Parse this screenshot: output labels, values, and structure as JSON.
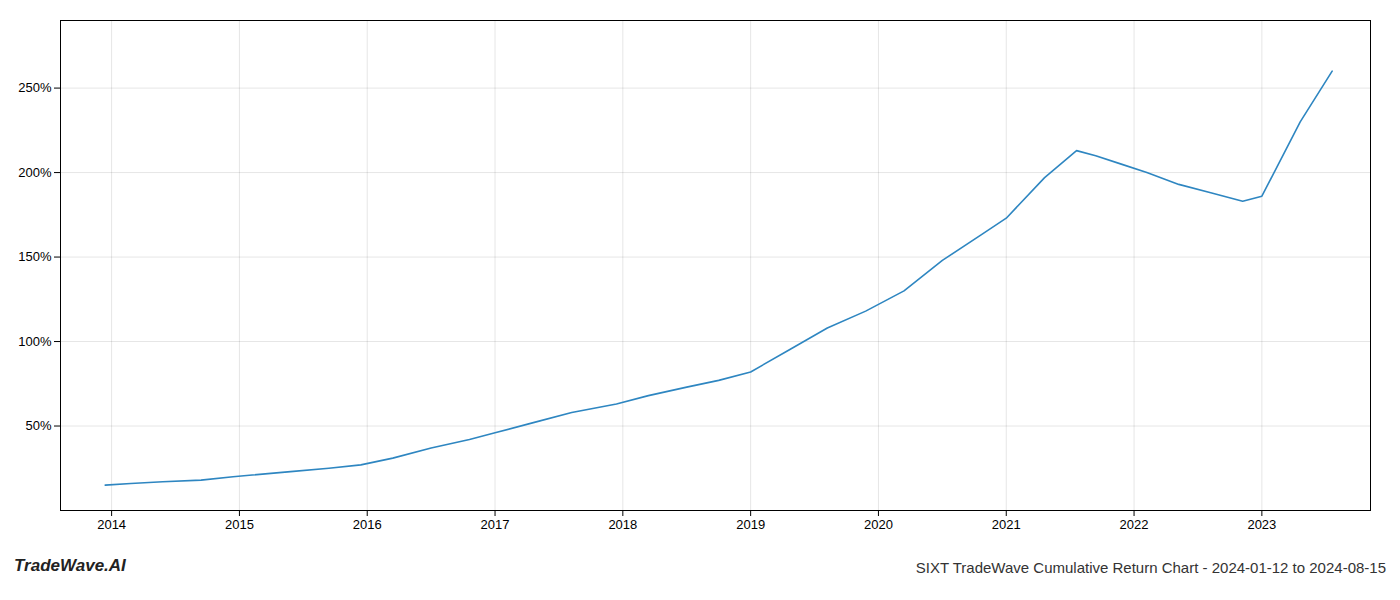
{
  "chart_data": {
    "type": "line",
    "title": "SIXT TradeWave Cumulative Return Chart - 2024-01-12 to 2024-08-15",
    "annotations": [
      "TradeWave.AI"
    ],
    "x": [
      2013.95,
      2014.15,
      2014.4,
      2014.7,
      2014.95,
      2015.1,
      2015.4,
      2015.7,
      2015.95,
      2016.2,
      2016.5,
      2016.8,
      2017.0,
      2017.3,
      2017.6,
      2017.95,
      2018.2,
      2018.5,
      2018.75,
      2019.0,
      2019.3,
      2019.6,
      2019.9,
      2020.2,
      2020.5,
      2020.8,
      2021.0,
      2021.3,
      2021.55,
      2021.7,
      2021.9,
      2022.1,
      2022.35,
      2022.6,
      2022.85,
      2023.0,
      2023.3,
      2023.55
    ],
    "values": [
      15,
      16,
      17,
      18,
      20,
      21,
      23,
      25,
      27,
      31,
      37,
      42,
      46,
      52,
      58,
      63,
      68,
      73,
      77,
      82,
      95,
      108,
      118,
      130,
      148,
      163,
      173,
      197,
      213,
      210,
      205,
      200,
      193,
      188,
      183,
      186,
      230,
      260
    ],
    "color": "#2e86c1",
    "xlim": [
      2013.6,
      2023.85
    ],
    "xticks": [
      2014,
      2015,
      2016,
      2017,
      2018,
      2019,
      2020,
      2021,
      2022,
      2023
    ],
    "ylim": [
      0,
      290
    ],
    "yticks": [
      {
        "value": 50,
        "label": "50%"
      },
      {
        "value": 100,
        "label": "100%"
      },
      {
        "value": 150,
        "label": "150%"
      },
      {
        "value": 200,
        "label": "200%"
      },
      {
        "value": 250,
        "label": "250%"
      }
    ],
    "grid": true
  }
}
